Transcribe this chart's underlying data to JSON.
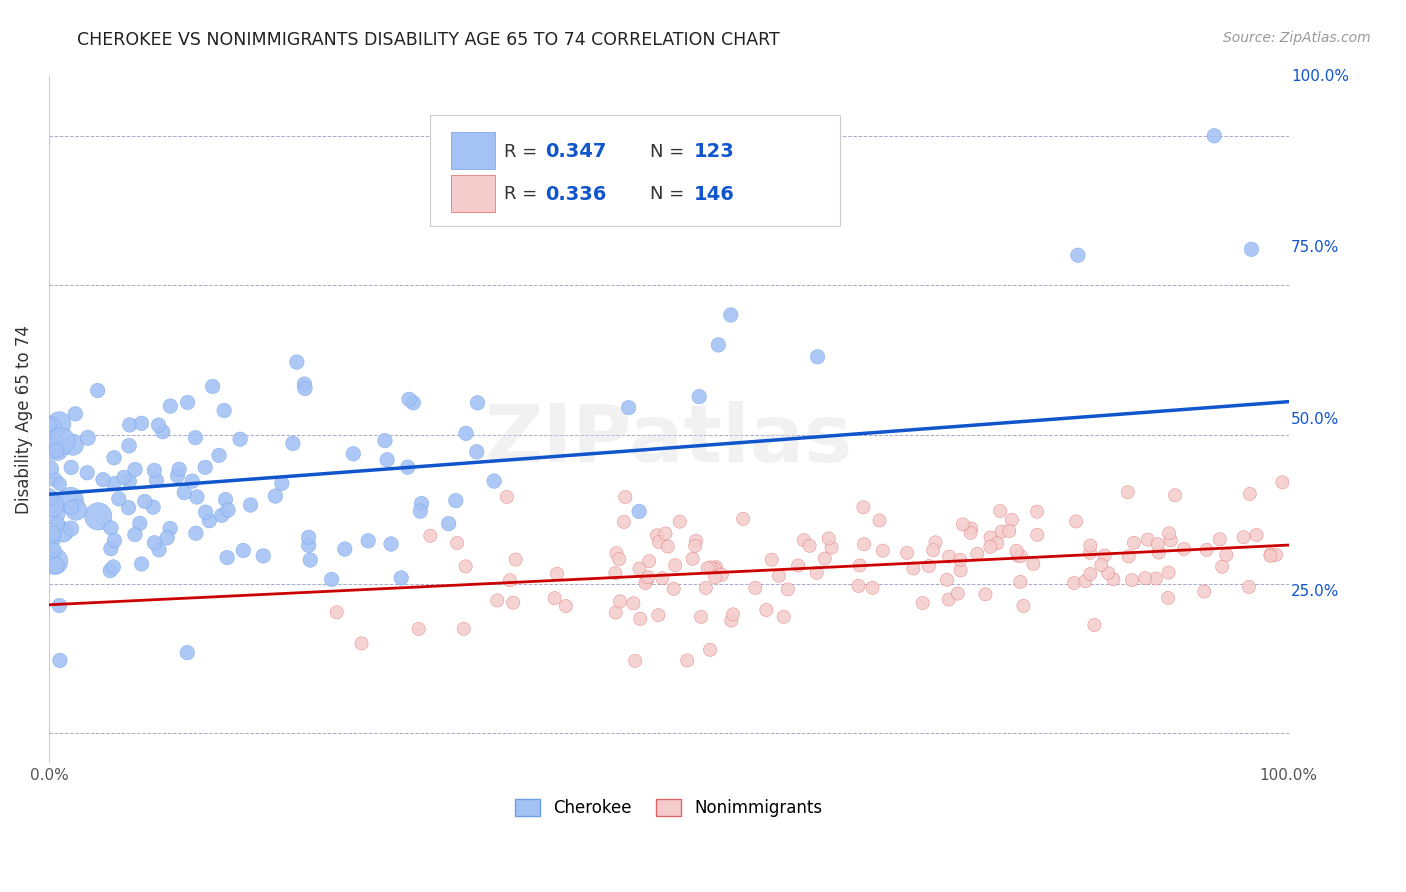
{
  "title": "CHEROKEE VS NONIMMIGRANTS DISABILITY AGE 65 TO 74 CORRELATION CHART",
  "source": "Source: ZipAtlas.com",
  "ylabel": "Disability Age 65 to 74",
  "cherokee_color": "#a4c2f4",
  "cherokee_edge_color": "#6d9eeb",
  "nonimmigrant_color": "#f4cccc",
  "nonimmigrant_edge_color": "#e06666",
  "cherokee_line_color": "#1155cc",
  "nonimmigrant_line_color": "#cc0000",
  "cherokee_R": 0.347,
  "cherokee_N": 123,
  "nonimmigrant_R": 0.336,
  "nonimmigrant_N": 146,
  "legend_val_color": "#1155cc",
  "watermark": "ZIPatlas",
  "background_color": "#ffffff",
  "grid_color": "#aaaacc",
  "right_label_color": "#1155cc",
  "cherokee_line_intercept": 0.4,
  "cherokee_line_slope": 0.155,
  "nonimmigrant_line_intercept": 0.215,
  "nonimmigrant_line_slope": 0.1
}
